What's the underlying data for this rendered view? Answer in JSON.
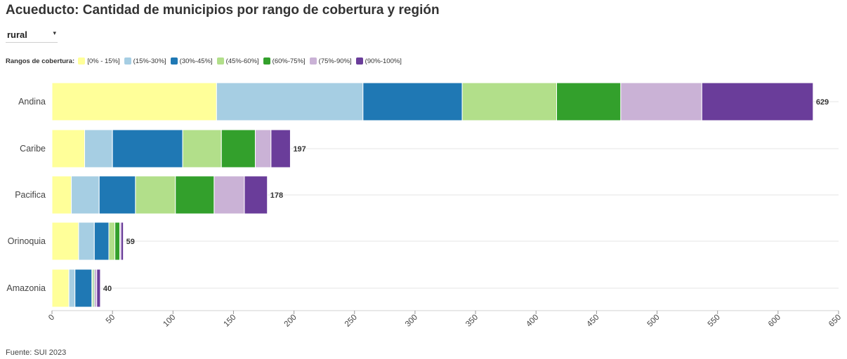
{
  "title": "Acueducto: Cantidad de municipios por rango de cobertura y región",
  "filter": {
    "value": "rural",
    "caret": "▾"
  },
  "legend_title": "Rangos de cobertura:",
  "source": "Fuente: SUI 2023",
  "chart_data": {
    "type": "bar",
    "orientation": "horizontal",
    "stacked": true,
    "categories": [
      "Andina",
      "Caribe",
      "Pacifica",
      "Orinoquia",
      "Amazonia"
    ],
    "totals": [
      "629",
      "197",
      "178",
      "59",
      "40"
    ],
    "series": [
      {
        "name": "[0% - 15%]",
        "color": "#ffff99",
        "values": [
          136,
          27,
          16,
          22,
          14
        ]
      },
      {
        "name": "(15%-30%]",
        "color": "#a6cee3",
        "values": [
          121,
          23,
          23,
          13,
          5
        ]
      },
      {
        "name": "(30%-45%]",
        "color": "#1f78b4",
        "values": [
          82,
          58,
          30,
          12,
          14
        ]
      },
      {
        "name": "(45%-60%]",
        "color": "#b2df8a",
        "values": [
          78,
          32,
          33,
          5,
          1
        ]
      },
      {
        "name": "(60%-75%]",
        "color": "#33a02c",
        "values": [
          53,
          28,
          32,
          4,
          1
        ]
      },
      {
        "name": "(75%-90%]",
        "color": "#cab2d6",
        "values": [
          67,
          13,
          25,
          1,
          2
        ]
      },
      {
        "name": "(90%-100%]",
        "color": "#6a3d9a",
        "values": [
          92,
          16,
          19,
          2,
          3
        ]
      }
    ],
    "xlim": [
      0,
      650
    ],
    "xticks": [
      "0",
      "50",
      "100",
      "150",
      "200",
      "250",
      "300",
      "350",
      "400",
      "450",
      "500",
      "550",
      "600",
      "650"
    ],
    "grid": "horizontal"
  }
}
